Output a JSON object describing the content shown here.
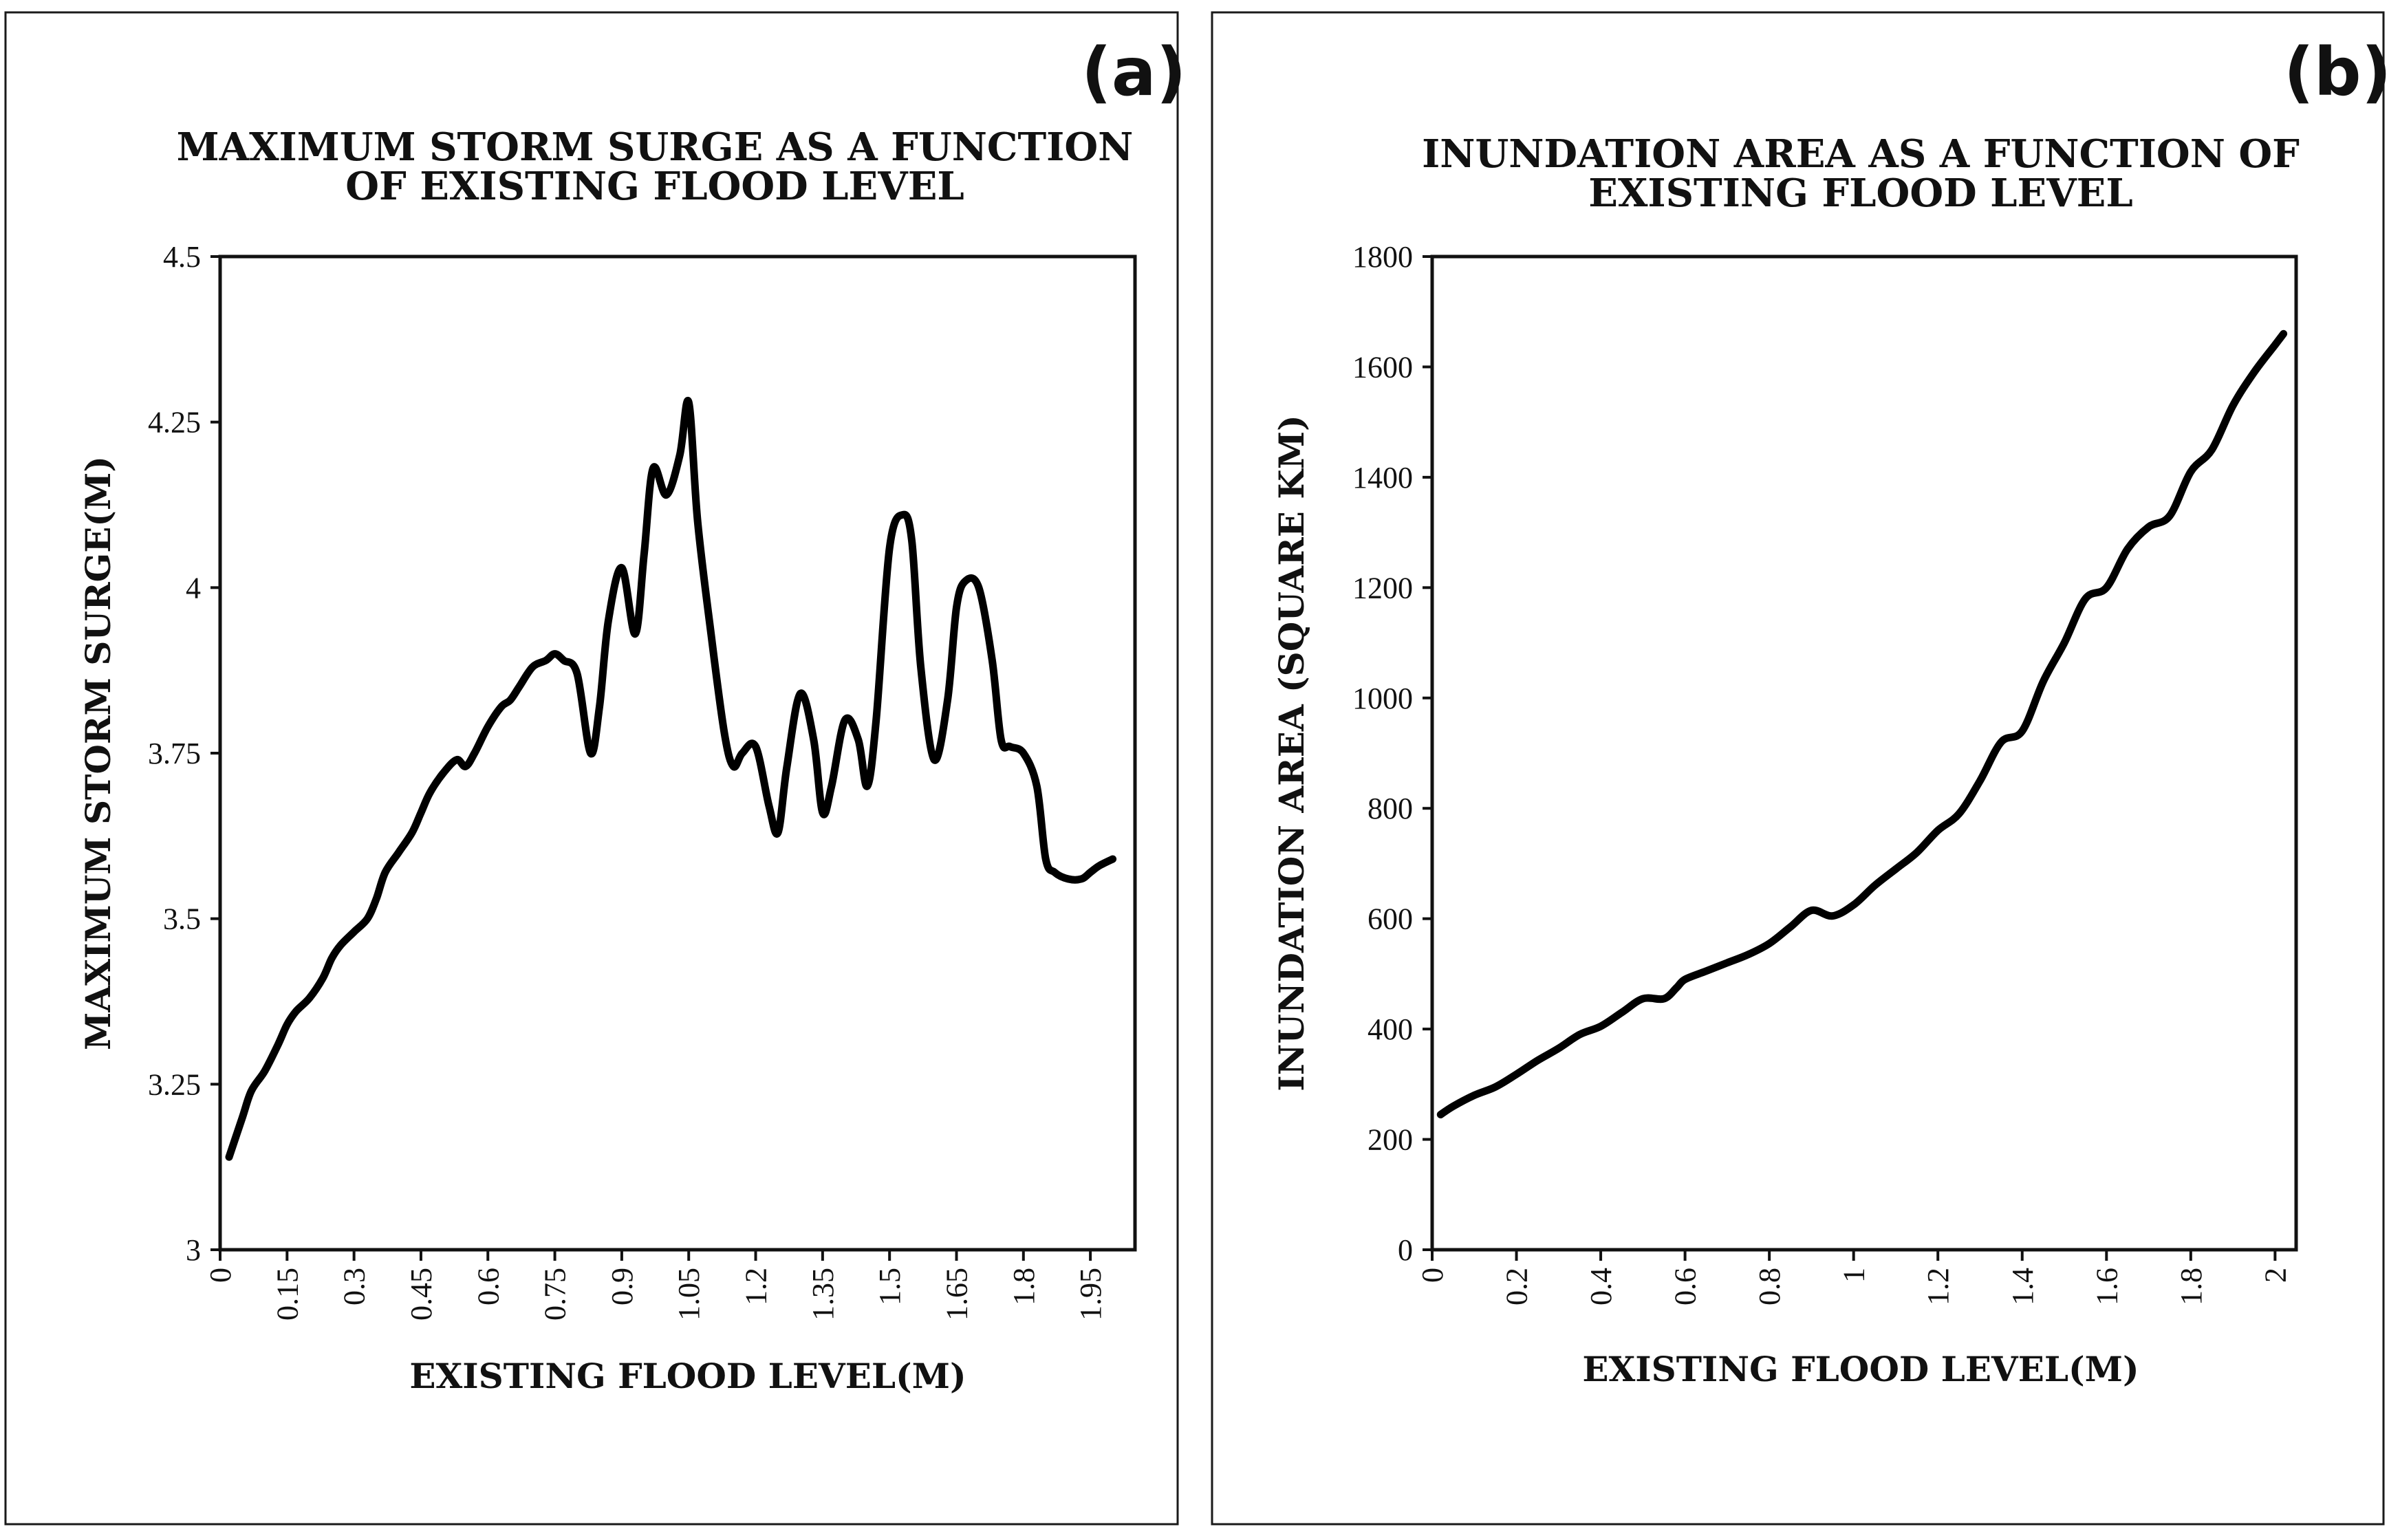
{
  "figure": {
    "panels": [
      {
        "id": "a",
        "panel_label": "(a)",
        "title_lines": [
          "MAXIMUM STORM SURGE AS A FUNCTION",
          "OF EXISTING FLOOD LEVEL"
        ],
        "xlabel": "EXISTING FLOOD LEVEL(M)",
        "ylabel": "MAXIMUM STORM SURGE(M)",
        "x_tick_labels": [
          "0",
          "0.15",
          "0.3",
          "0.45",
          "0.6",
          "0.75",
          "0.9",
          "1.05",
          "1.2",
          "1.35",
          "1.5",
          "1.65",
          "1.8",
          "1.95"
        ],
        "y_tick_labels": [
          "3",
          "3.25",
          "3.5",
          "3.75",
          "4",
          "4.25",
          "4.5"
        ]
      },
      {
        "id": "b",
        "panel_label": "(b)",
        "title_lines": [
          "INUNDATION AREA AS A FUNCTION OF",
          "EXISTING FLOOD LEVEL"
        ],
        "xlabel": "EXISTING FLOOD LEVEL(M)",
        "ylabel": "INUNDATION AREA (SQUARE KM)",
        "x_tick_labels": [
          "0",
          "0.2",
          "0.4",
          "0.6",
          "0.8",
          "1",
          "1.2",
          "1.4",
          "1.6",
          "1.8",
          "2"
        ],
        "y_tick_labels": [
          "0",
          "200",
          "400",
          "600",
          "800",
          "1000",
          "1200",
          "1400",
          "1600",
          "1800"
        ]
      }
    ]
  },
  "chart_data": [
    {
      "type": "line",
      "title": "MAXIMUM STORM SURGE AS A FUNCTION OF EXISTING FLOOD LEVEL",
      "xlabel": "EXISTING FLOOD LEVEL(M)",
      "ylabel": "MAXIMUM STORM SURGE(M)",
      "xlim": [
        0,
        2.05
      ],
      "ylim": [
        3,
        4.5
      ],
      "x_ticks": [
        0,
        0.15,
        0.3,
        0.45,
        0.6,
        0.75,
        0.9,
        1.05,
        1.2,
        1.35,
        1.5,
        1.65,
        1.8,
        1.95
      ],
      "y_ticks": [
        3,
        3.25,
        3.5,
        3.75,
        4,
        4.25,
        4.5
      ],
      "series": [
        {
          "name": "Maximum storm surge",
          "x": [
            0.02,
            0.05,
            0.07,
            0.1,
            0.13,
            0.15,
            0.17,
            0.2,
            0.23,
            0.25,
            0.27,
            0.3,
            0.33,
            0.35,
            0.37,
            0.4,
            0.43,
            0.45,
            0.47,
            0.5,
            0.53,
            0.55,
            0.57,
            0.6,
            0.63,
            0.65,
            0.67,
            0.7,
            0.73,
            0.75,
            0.77,
            0.8,
            0.83,
            0.85,
            0.87,
            0.9,
            0.93,
            0.95,
            0.97,
            1.0,
            1.03,
            1.05,
            1.07,
            1.1,
            1.13,
            1.15,
            1.17,
            1.2,
            1.23,
            1.25,
            1.27,
            1.3,
            1.33,
            1.35,
            1.37,
            1.4,
            1.43,
            1.45,
            1.47,
            1.5,
            1.53,
            1.55,
            1.57,
            1.6,
            1.63,
            1.65,
            1.67,
            1.7,
            1.73,
            1.75,
            1.77,
            1.8,
            1.83,
            1.85,
            1.87,
            1.9,
            1.93,
            1.95,
            1.97,
            2.0
          ],
          "values": [
            3.14,
            3.2,
            3.24,
            3.27,
            3.31,
            3.34,
            3.36,
            3.38,
            3.41,
            3.44,
            3.46,
            3.48,
            3.5,
            3.53,
            3.57,
            3.6,
            3.63,
            3.66,
            3.69,
            3.72,
            3.74,
            3.73,
            3.75,
            3.79,
            3.82,
            3.83,
            3.85,
            3.88,
            3.89,
            3.9,
            3.89,
            3.87,
            3.75,
            3.82,
            3.95,
            4.03,
            3.93,
            4.05,
            4.18,
            4.14,
            4.2,
            4.28,
            4.1,
            3.93,
            3.78,
            3.73,
            3.75,
            3.76,
            3.67,
            3.63,
            3.73,
            3.84,
            3.77,
            3.66,
            3.7,
            3.8,
            3.77,
            3.7,
            3.8,
            4.06,
            4.11,
            4.07,
            3.88,
            3.74,
            3.83,
            3.97,
            4.01,
            4.0,
            3.89,
            3.77,
            3.76,
            3.75,
            3.7,
            3.59,
            3.57,
            3.56,
            3.56,
            3.57,
            3.58,
            3.59
          ]
        }
      ]
    },
    {
      "type": "line",
      "title": "INUNDATION AREA AS A FUNCTION OF EXISTING FLOOD LEVEL",
      "xlabel": "EXISTING FLOOD LEVEL(M)",
      "ylabel": "INUNDATION AREA (SQUARE KM)",
      "xlim": [
        0,
        2.05
      ],
      "ylim": [
        0,
        1800
      ],
      "x_ticks": [
        0,
        0.2,
        0.4,
        0.6,
        0.8,
        1,
        1.2,
        1.4,
        1.6,
        1.8,
        2
      ],
      "y_ticks": [
        0,
        200,
        400,
        600,
        800,
        1000,
        1200,
        1400,
        1600,
        1800
      ],
      "series": [
        {
          "name": "Inundation area",
          "x": [
            0.02,
            0.05,
            0.1,
            0.15,
            0.2,
            0.25,
            0.3,
            0.35,
            0.4,
            0.45,
            0.5,
            0.55,
            0.58,
            0.6,
            0.65,
            0.7,
            0.75,
            0.8,
            0.85,
            0.9,
            0.95,
            1.0,
            1.05,
            1.1,
            1.15,
            1.2,
            1.25,
            1.3,
            1.35,
            1.4,
            1.45,
            1.5,
            1.55,
            1.6,
            1.65,
            1.7,
            1.75,
            1.8,
            1.85,
            1.9,
            1.95,
            2.0,
            2.02
          ],
          "values": [
            245,
            260,
            280,
            295,
            318,
            343,
            365,
            390,
            405,
            430,
            455,
            455,
            475,
            490,
            505,
            520,
            535,
            555,
            585,
            615,
            605,
            625,
            660,
            690,
            720,
            760,
            790,
            850,
            920,
            940,
            1030,
            1100,
            1180,
            1200,
            1270,
            1310,
            1330,
            1410,
            1450,
            1530,
            1590,
            1640,
            1660
          ]
        }
      ]
    }
  ]
}
